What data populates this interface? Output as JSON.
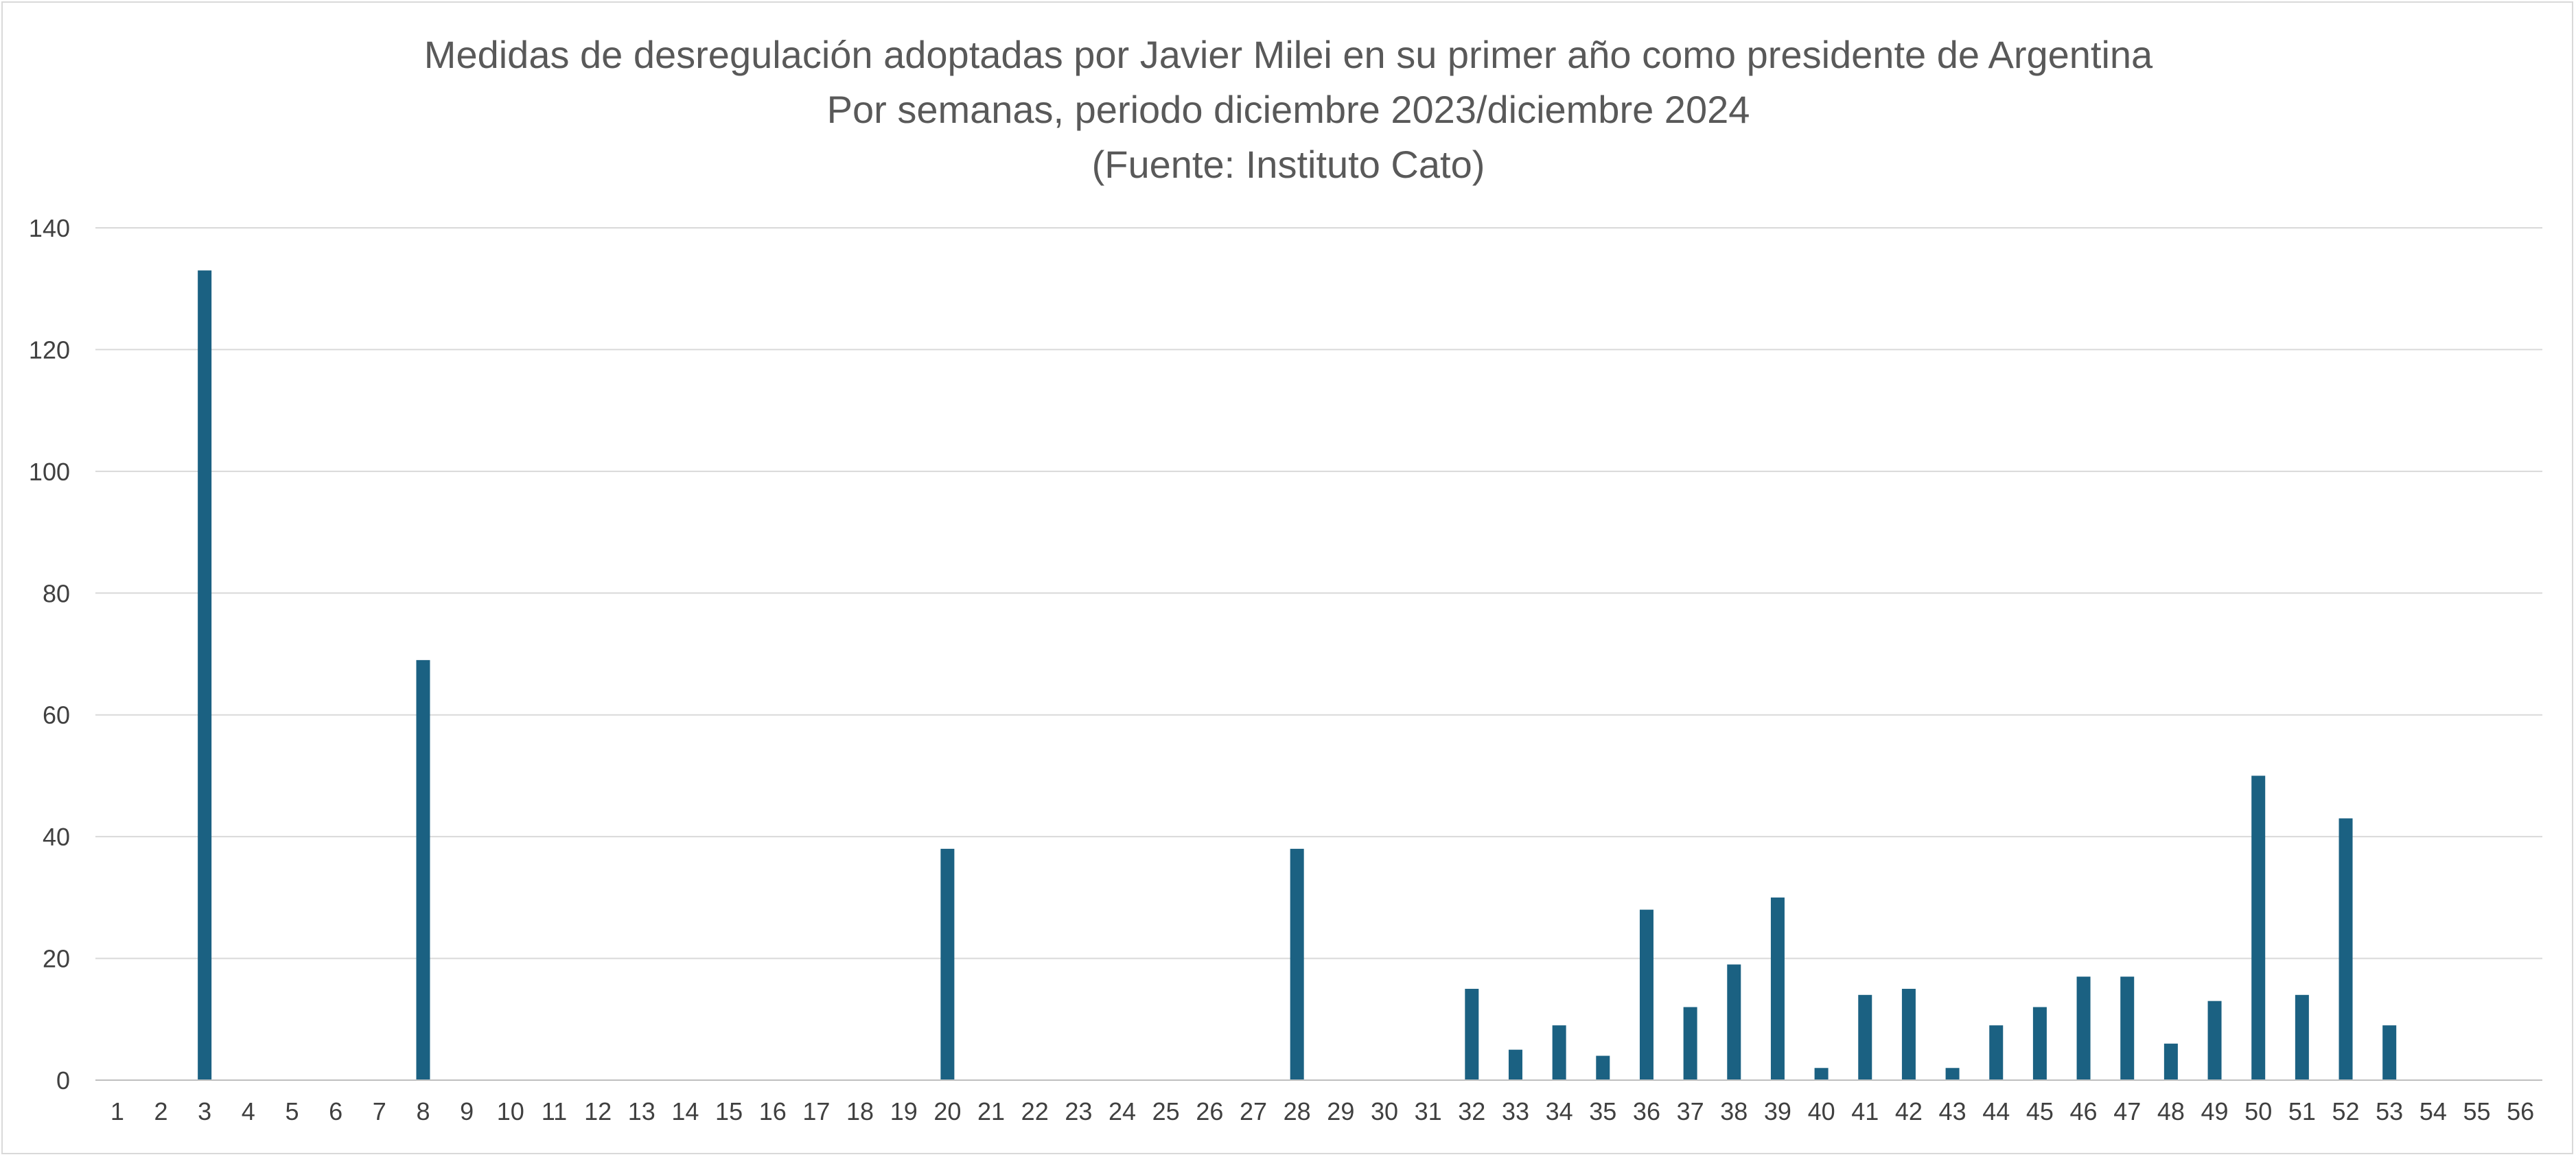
{
  "chart_data": {
    "type": "bar",
    "title": [
      "Medidas de desregulación adoptadas por Javier Milei en su primer año como presidente de Argentina",
      "Por semanas, periodo diciembre 2023/diciembre 2024",
      "(Fuente: Instituto Cato)"
    ],
    "xlabel": "",
    "ylabel": "",
    "ylim": [
      0,
      140
    ],
    "yticks": [
      0,
      20,
      40,
      60,
      80,
      100,
      120,
      140
    ],
    "grid": true,
    "legend": "none",
    "bar_color": "#1b6182",
    "categories": [
      "1",
      "2",
      "3",
      "4",
      "5",
      "6",
      "7",
      "8",
      "9",
      "10",
      "11",
      "12",
      "13",
      "14",
      "15",
      "16",
      "17",
      "18",
      "19",
      "20",
      "21",
      "22",
      "23",
      "24",
      "25",
      "26",
      "27",
      "28",
      "29",
      "30",
      "31",
      "32",
      "33",
      "34",
      "35",
      "36",
      "37",
      "38",
      "39",
      "40",
      "41",
      "42",
      "43",
      "44",
      "45",
      "46",
      "47",
      "48",
      "49",
      "50",
      "51",
      "52",
      "53",
      "54",
      "55",
      "56"
    ],
    "values": [
      0,
      0,
      133,
      0,
      0,
      0,
      0,
      69,
      0,
      0,
      0,
      0,
      0,
      0,
      0,
      0,
      0,
      0,
      0,
      38,
      0,
      0,
      0,
      0,
      0,
      0,
      0,
      38,
      0,
      0,
      0,
      15,
      5,
      9,
      4,
      28,
      12,
      19,
      30,
      2,
      14,
      15,
      2,
      9,
      12,
      17,
      17,
      6,
      13,
      50,
      14,
      43,
      9,
      0,
      0,
      0
    ]
  }
}
